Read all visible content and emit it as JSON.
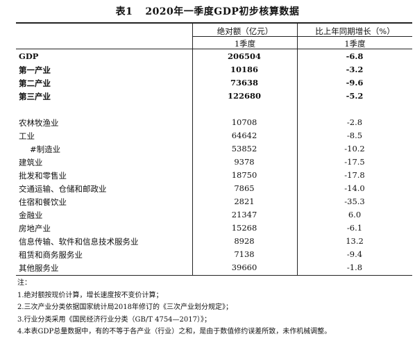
{
  "title": {
    "number": "表1",
    "text": "2020年一季度GDP初步核算数据"
  },
  "header": {
    "col1": "绝对额（亿元）",
    "col2": "比上年同期增长（%）",
    "sub1": "1季度",
    "sub2": "1季度"
  },
  "main_rows": [
    {
      "label": "GDP",
      "abs": "206504",
      "growth": "-6.8"
    },
    {
      "label": "第一产业",
      "abs": "10186",
      "growth": "-3.2"
    },
    {
      "label": "第二产业",
      "abs": "73638",
      "growth": "-9.6"
    },
    {
      "label": "第三产业",
      "abs": "122680",
      "growth": "-5.2"
    }
  ],
  "industry_rows": [
    {
      "label": "农林牧渔业",
      "abs": "10708",
      "growth": "-2.8"
    },
    {
      "label": "工业",
      "abs": "64642",
      "growth": "-8.5"
    },
    {
      "label": "#制造业",
      "abs": "53852",
      "growth": "-10.2"
    },
    {
      "label": "建筑业",
      "abs": "9378",
      "growth": "-17.5"
    },
    {
      "label": "批发和零售业",
      "abs": "18750",
      "growth": "-17.8"
    },
    {
      "label": "交通运输、仓储和邮政业",
      "abs": "7865",
      "growth": "-14.0"
    },
    {
      "label": "住宿和餐饮业",
      "abs": "2821",
      "growth": "-35.3"
    },
    {
      "label": "金融业",
      "abs": "21347",
      "growth": "6.0"
    },
    {
      "label": "房地产业",
      "abs": "15268",
      "growth": "-6.1"
    },
    {
      "label": "信息传输、软件和信息技术服务业",
      "abs": "8928",
      "growth": "13.2"
    },
    {
      "label": "租赁和商务服务业",
      "abs": "7138",
      "growth": "-9.4"
    },
    {
      "label": "其他服务业",
      "abs": "39660",
      "growth": "-1.8"
    }
  ],
  "notes": [
    "注：",
    "1.绝对额按现价计算，增长速度按不变价计算；",
    "2.三次产业分类依据国家统计局2018年修订的《三次产业划分规定》；",
    "3.行业分类采用《国民经济行业分类（GB/T 4754—2017）》；",
    "4.本表GDP总量数据中，有的不等于各产业（行业）之和，是由于数值修约误差所致，未作机械调整。"
  ]
}
